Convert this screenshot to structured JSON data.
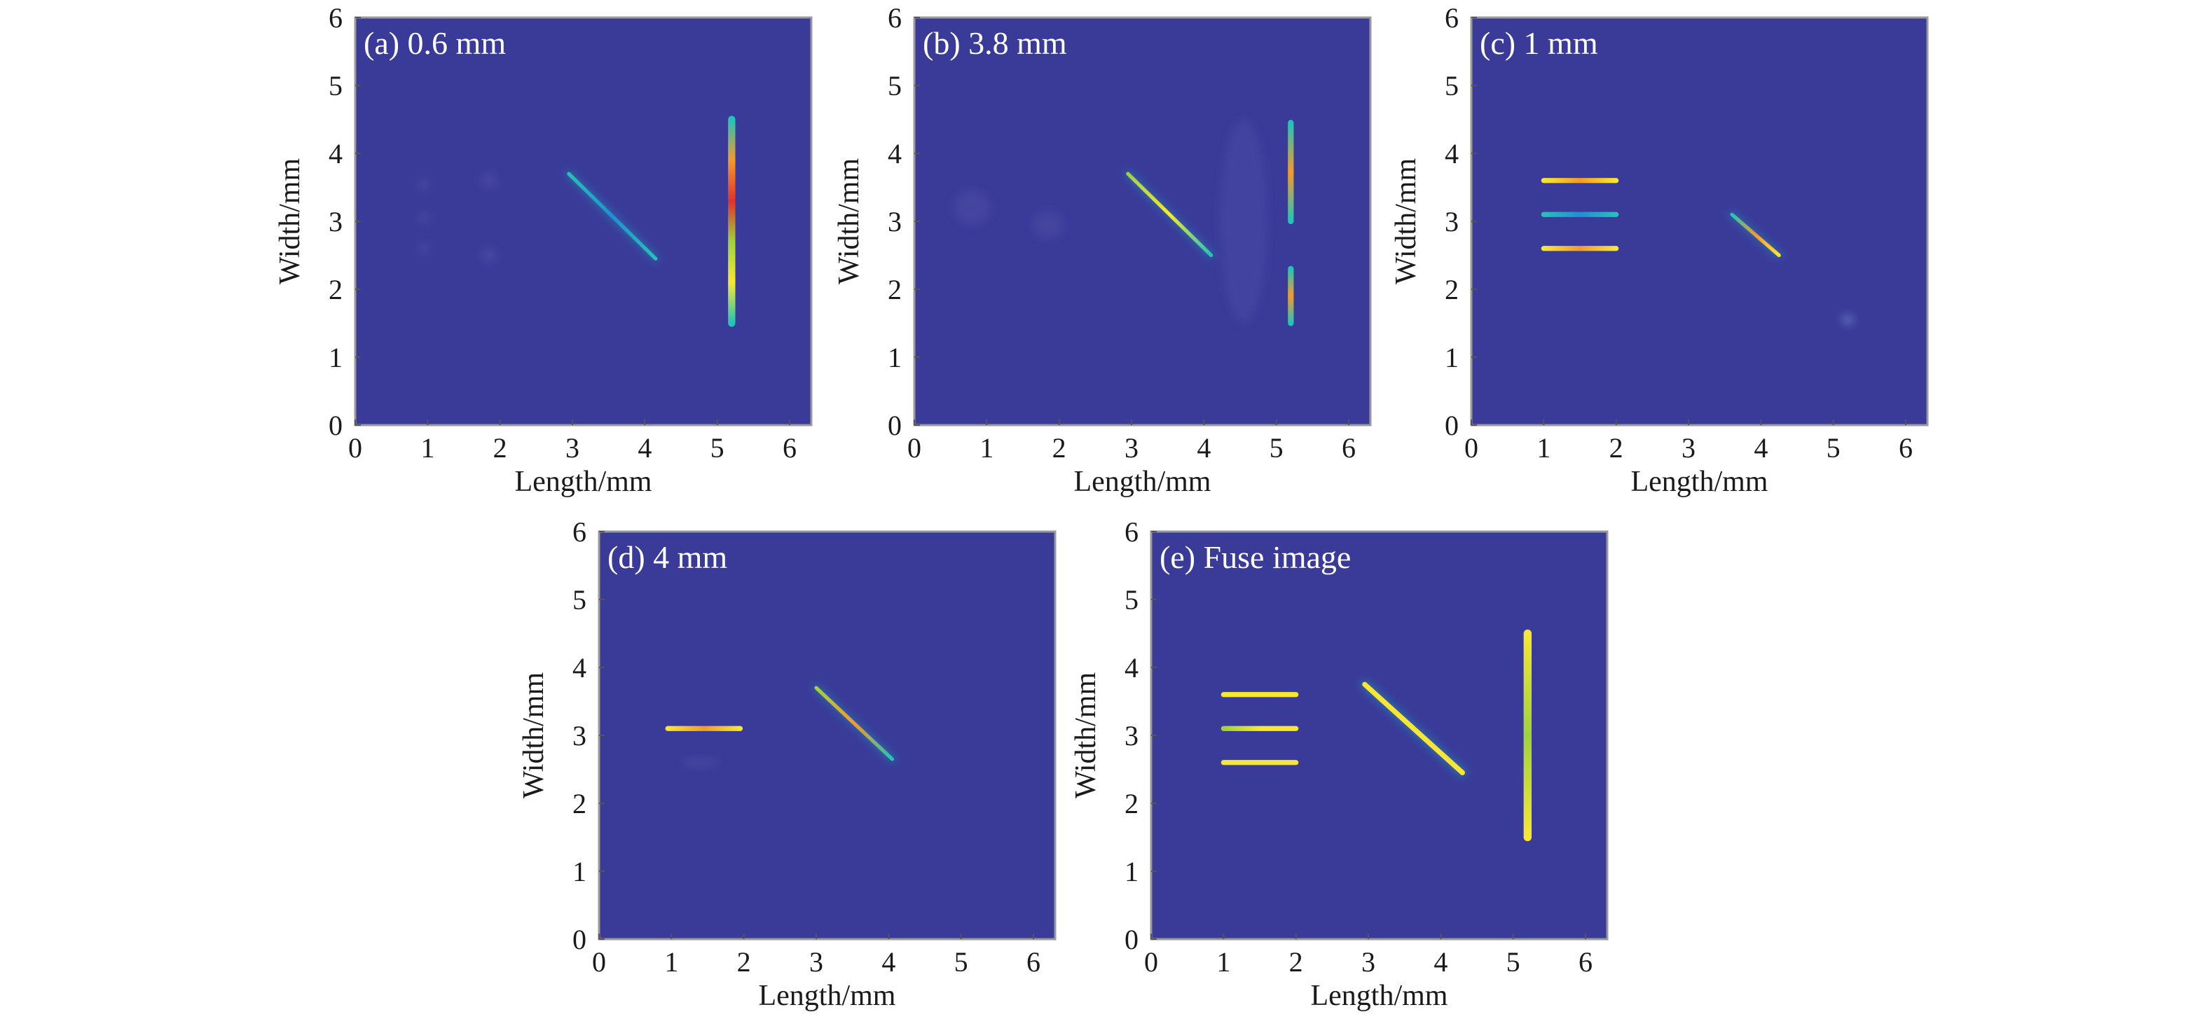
{
  "colors": {
    "background": "#3a3a99",
    "frame": "#9a9a9a",
    "colormap": [
      "#3a3a99",
      "#1f8fd6",
      "#21c4b6",
      "#9fd23d",
      "#f7e733",
      "#f39a2d",
      "#e0322b"
    ]
  },
  "chart_data": [
    {
      "type": "heatmap",
      "label": "(a) 0.6 mm",
      "xlabel": "Length/mm",
      "ylabel": "Width/mm",
      "xlim": [
        0,
        6.3
      ],
      "ylim": [
        0,
        6
      ],
      "xticks": [
        "0",
        "1",
        "2",
        "3",
        "4",
        "5",
        "6"
      ],
      "yticks": [
        "0",
        "1",
        "2",
        "3",
        "4",
        "5",
        "6"
      ],
      "features": [
        {
          "kind": "line",
          "x": [
            2.95,
            4.15
          ],
          "y": [
            3.7,
            2.45
          ],
          "colors": [
            "#21c4b6",
            "#1f8fd6",
            "#21c4b6"
          ],
          "width": 0.05
        },
        {
          "kind": "line",
          "x": [
            5.2,
            5.2
          ],
          "y": [
            4.5,
            1.5
          ],
          "colors": [
            "#21c4b6",
            "#f39a2d",
            "#e0322b",
            "#9fd23d",
            "#f7e733",
            "#21c4b6"
          ],
          "width": 0.1
        },
        {
          "kind": "blob",
          "x": 0.95,
          "y": 3.55,
          "r": 0.07,
          "color": "#4a4aa3"
        },
        {
          "kind": "blob",
          "x": 0.95,
          "y": 3.05,
          "r": 0.07,
          "color": "#4a4aa3"
        },
        {
          "kind": "blob",
          "x": 0.95,
          "y": 2.6,
          "r": 0.07,
          "color": "#4a4aa3"
        },
        {
          "kind": "blob",
          "x": 1.85,
          "y": 3.6,
          "r": 0.1,
          "color": "#4a4aa3"
        },
        {
          "kind": "blob",
          "x": 1.85,
          "y": 2.5,
          "r": 0.1,
          "color": "#4a4aa3"
        }
      ]
    },
    {
      "type": "heatmap",
      "label": "(b) 3.8 mm",
      "xlabel": "Length/mm",
      "ylabel": "Width/mm",
      "xlim": [
        0,
        6.3
      ],
      "ylim": [
        0,
        6
      ],
      "xticks": [
        "0",
        "1",
        "2",
        "3",
        "4",
        "5",
        "6"
      ],
      "yticks": [
        "0",
        "1",
        "2",
        "3",
        "4",
        "5",
        "6"
      ],
      "features": [
        {
          "kind": "line",
          "x": [
            2.95,
            4.1
          ],
          "y": [
            3.7,
            2.5
          ],
          "colors": [
            "#9fd23d",
            "#f7e733",
            "#21c4b6"
          ],
          "width": 0.05
        },
        {
          "kind": "line",
          "x": [
            5.2,
            5.2
          ],
          "y": [
            4.45,
            3.0
          ],
          "colors": [
            "#21c4b6",
            "#f39a2d",
            "#21c4b6"
          ],
          "width": 0.08
        },
        {
          "kind": "line",
          "x": [
            5.2,
            5.2
          ],
          "y": [
            2.3,
            1.5
          ],
          "colors": [
            "#21c4b6",
            "#f39a2d",
            "#21c4b6"
          ],
          "width": 0.08
        },
        {
          "kind": "blob",
          "x": 0.8,
          "y": 3.2,
          "r": 0.25,
          "color": "#4444a0"
        },
        {
          "kind": "blob",
          "x": 1.85,
          "y": 2.95,
          "r": 0.2,
          "color": "#4444a0"
        },
        {
          "kind": "blob",
          "x": 4.55,
          "y": 3.0,
          "r": 0.32,
          "color": "#4242a0",
          "ry": 1.5
        }
      ]
    },
    {
      "type": "heatmap",
      "label": "(c) 1 mm",
      "xlabel": "Length/mm",
      "ylabel": "Width/mm",
      "xlim": [
        0,
        6.3
      ],
      "ylim": [
        0,
        6
      ],
      "xticks": [
        "0",
        "1",
        "2",
        "3",
        "4",
        "5",
        "6"
      ],
      "yticks": [
        "0",
        "1",
        "2",
        "3",
        "4",
        "5",
        "6"
      ],
      "features": [
        {
          "kind": "line",
          "x": [
            1.0,
            2.0
          ],
          "y": [
            3.6,
            3.6
          ],
          "colors": [
            "#f7e733",
            "#f39a2d",
            "#f7e733"
          ],
          "width": 0.07
        },
        {
          "kind": "line",
          "x": [
            1.0,
            2.0
          ],
          "y": [
            3.1,
            3.1
          ],
          "colors": [
            "#21c4b6",
            "#1f8fd6",
            "#21c4b6"
          ],
          "width": 0.07
        },
        {
          "kind": "line",
          "x": [
            1.0,
            2.0
          ],
          "y": [
            2.6,
            2.6
          ],
          "colors": [
            "#f7e733",
            "#f39a2d",
            "#f7e733"
          ],
          "width": 0.07
        },
        {
          "kind": "line",
          "x": [
            3.6,
            4.25
          ],
          "y": [
            3.1,
            2.5
          ],
          "colors": [
            "#21c4b6",
            "#f39a2d",
            "#f7e733"
          ],
          "width": 0.05
        },
        {
          "kind": "blob",
          "x": 5.2,
          "y": 1.55,
          "r": 0.08,
          "color": "#5a6bb8"
        }
      ]
    },
    {
      "type": "heatmap",
      "label": "(d) 4 mm",
      "xlabel": "Length/mm",
      "ylabel": "Width/mm",
      "xlim": [
        0,
        6.3
      ],
      "ylim": [
        0,
        6
      ],
      "xticks": [
        "0",
        "1",
        "2",
        "3",
        "4",
        "5",
        "6"
      ],
      "yticks": [
        "0",
        "1",
        "2",
        "3",
        "4",
        "5",
        "6"
      ],
      "features": [
        {
          "kind": "line",
          "x": [
            0.95,
            1.95
          ],
          "y": [
            3.1,
            3.1
          ],
          "colors": [
            "#f7e733",
            "#f39a2d",
            "#f7e733"
          ],
          "width": 0.07
        },
        {
          "kind": "line",
          "x": [
            3.0,
            4.05
          ],
          "y": [
            3.7,
            2.65
          ],
          "colors": [
            "#9fd23d",
            "#f39a2d",
            "#21c4b6"
          ],
          "width": 0.05
        },
        {
          "kind": "blob",
          "x": 1.4,
          "y": 2.6,
          "r": 0.25,
          "color": "#4646a2",
          "ry": 0.06
        }
      ]
    },
    {
      "type": "heatmap",
      "label": "(e) Fuse image",
      "xlabel": "Length/mm",
      "ylabel": "Width/mm",
      "xlim": [
        0,
        6.3
      ],
      "ylim": [
        0,
        6
      ],
      "xticks": [
        "0",
        "1",
        "2",
        "3",
        "4",
        "5",
        "6"
      ],
      "yticks": [
        "0",
        "1",
        "2",
        "3",
        "4",
        "5",
        "6"
      ],
      "features": [
        {
          "kind": "line",
          "x": [
            1.0,
            2.0
          ],
          "y": [
            3.6,
            3.6
          ],
          "colors": [
            "#f7e733",
            "#f7e733"
          ],
          "width": 0.07
        },
        {
          "kind": "line",
          "x": [
            1.0,
            2.0
          ],
          "y": [
            3.1,
            3.1
          ],
          "colors": [
            "#9fd23d",
            "#f7e733",
            "#f7e733"
          ],
          "width": 0.07
        },
        {
          "kind": "line",
          "x": [
            1.0,
            2.0
          ],
          "y": [
            2.6,
            2.6
          ],
          "colors": [
            "#f7e733",
            "#f7e733"
          ],
          "width": 0.07
        },
        {
          "kind": "line",
          "x": [
            2.95,
            4.3
          ],
          "y": [
            3.75,
            2.45
          ],
          "colors": [
            "#f7e733",
            "#f7e733"
          ],
          "width": 0.07
        },
        {
          "kind": "line",
          "x": [
            5.2,
            5.2
          ],
          "y": [
            4.5,
            1.5
          ],
          "colors": [
            "#f7e733",
            "#9fd23d",
            "#f7e733"
          ],
          "width": 0.11
        }
      ]
    }
  ]
}
